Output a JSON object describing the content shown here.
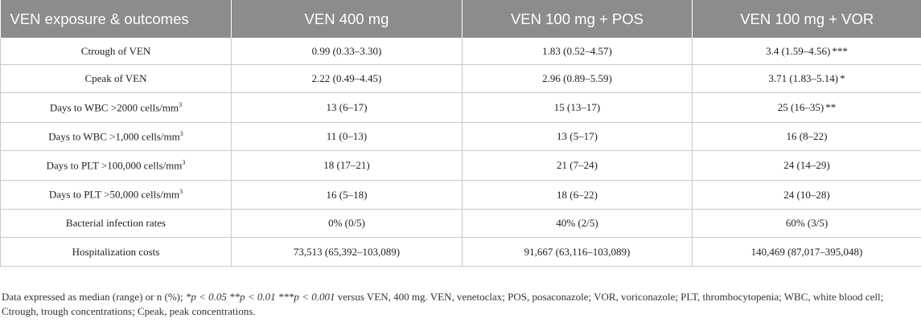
{
  "table": {
    "headers": [
      "VEN exposure & outcomes",
      "VEN 400 mg",
      "VEN 100 mg + POS",
      "VEN 100 mg + VOR"
    ],
    "rows": [
      {
        "label": "Ctrough of VEN",
        "unit_sup": "",
        "v400": "0.99 (0.33–3.30)",
        "v400_sig": "",
        "pos": "1.83 (0.52–4.57)",
        "pos_sig": "",
        "vor": "3.4 (1.59–4.56)",
        "vor_sig": "***"
      },
      {
        "label": "Cpeak of VEN",
        "unit_sup": "",
        "v400": "2.22 (0.49–4.45)",
        "v400_sig": "",
        "pos": "2.96 (0.89–5.59)",
        "pos_sig": "",
        "vor": "3.71 (1.83–5.14)",
        "vor_sig": "*"
      },
      {
        "label": "Days to WBC >2000 cells/mm",
        "unit_sup": "3",
        "v400": "13 (6–17)",
        "v400_sig": "",
        "pos": "15 (13–17)",
        "pos_sig": "",
        "vor": "25 (16–35)",
        "vor_sig": "**"
      },
      {
        "label": "Days to WBC >1,000 cells/mm",
        "unit_sup": "3",
        "v400": "11 (0–13)",
        "v400_sig": "",
        "pos": "13 (5–17)",
        "pos_sig": "",
        "vor": "16 (8–22)",
        "vor_sig": ""
      },
      {
        "label": "Days to PLT >100,000 cells/mm",
        "unit_sup": "3",
        "v400": "18 (17–21)",
        "v400_sig": "",
        "pos": "21 (7–24)",
        "pos_sig": "",
        "vor": "24 (14–29)",
        "vor_sig": ""
      },
      {
        "label": "Days to PLT >50,000 cells/mm",
        "unit_sup": "3",
        "v400": "16 (5–18)",
        "v400_sig": "",
        "pos": "18 (6–22)",
        "pos_sig": "",
        "vor": "24 (10–28)",
        "vor_sig": ""
      },
      {
        "label": "Bacterial infection rates",
        "unit_sup": "",
        "v400": "0% (0/5)",
        "v400_sig": "",
        "pos": "40% (2/5)",
        "pos_sig": "",
        "vor": "60% (3/5)",
        "vor_sig": ""
      },
      {
        "label": "Hospitalization costs",
        "unit_sup": "",
        "v400": "73,513 (65,392–103,089)",
        "v400_sig": "",
        "pos": "91,667 (63,116–103,089)",
        "pos_sig": "",
        "vor": "140,469 (87,017–395,048)",
        "vor_sig": ""
      }
    ]
  },
  "footnote": {
    "lead": "Data expressed as median (range) or n (%); ",
    "p1": "*p < 0.05",
    "p2": " **p < 0.01",
    "p3": " ***p < 0.001",
    "rest": " versus VEN, 400 mg. VEN, venetoclax; POS, posaconazole; VOR, voriconazole; PLT, thrombocytopenia; WBC, white blood cell; Ctrough, trough concentrations; Cpeak, peak concentrations."
  }
}
